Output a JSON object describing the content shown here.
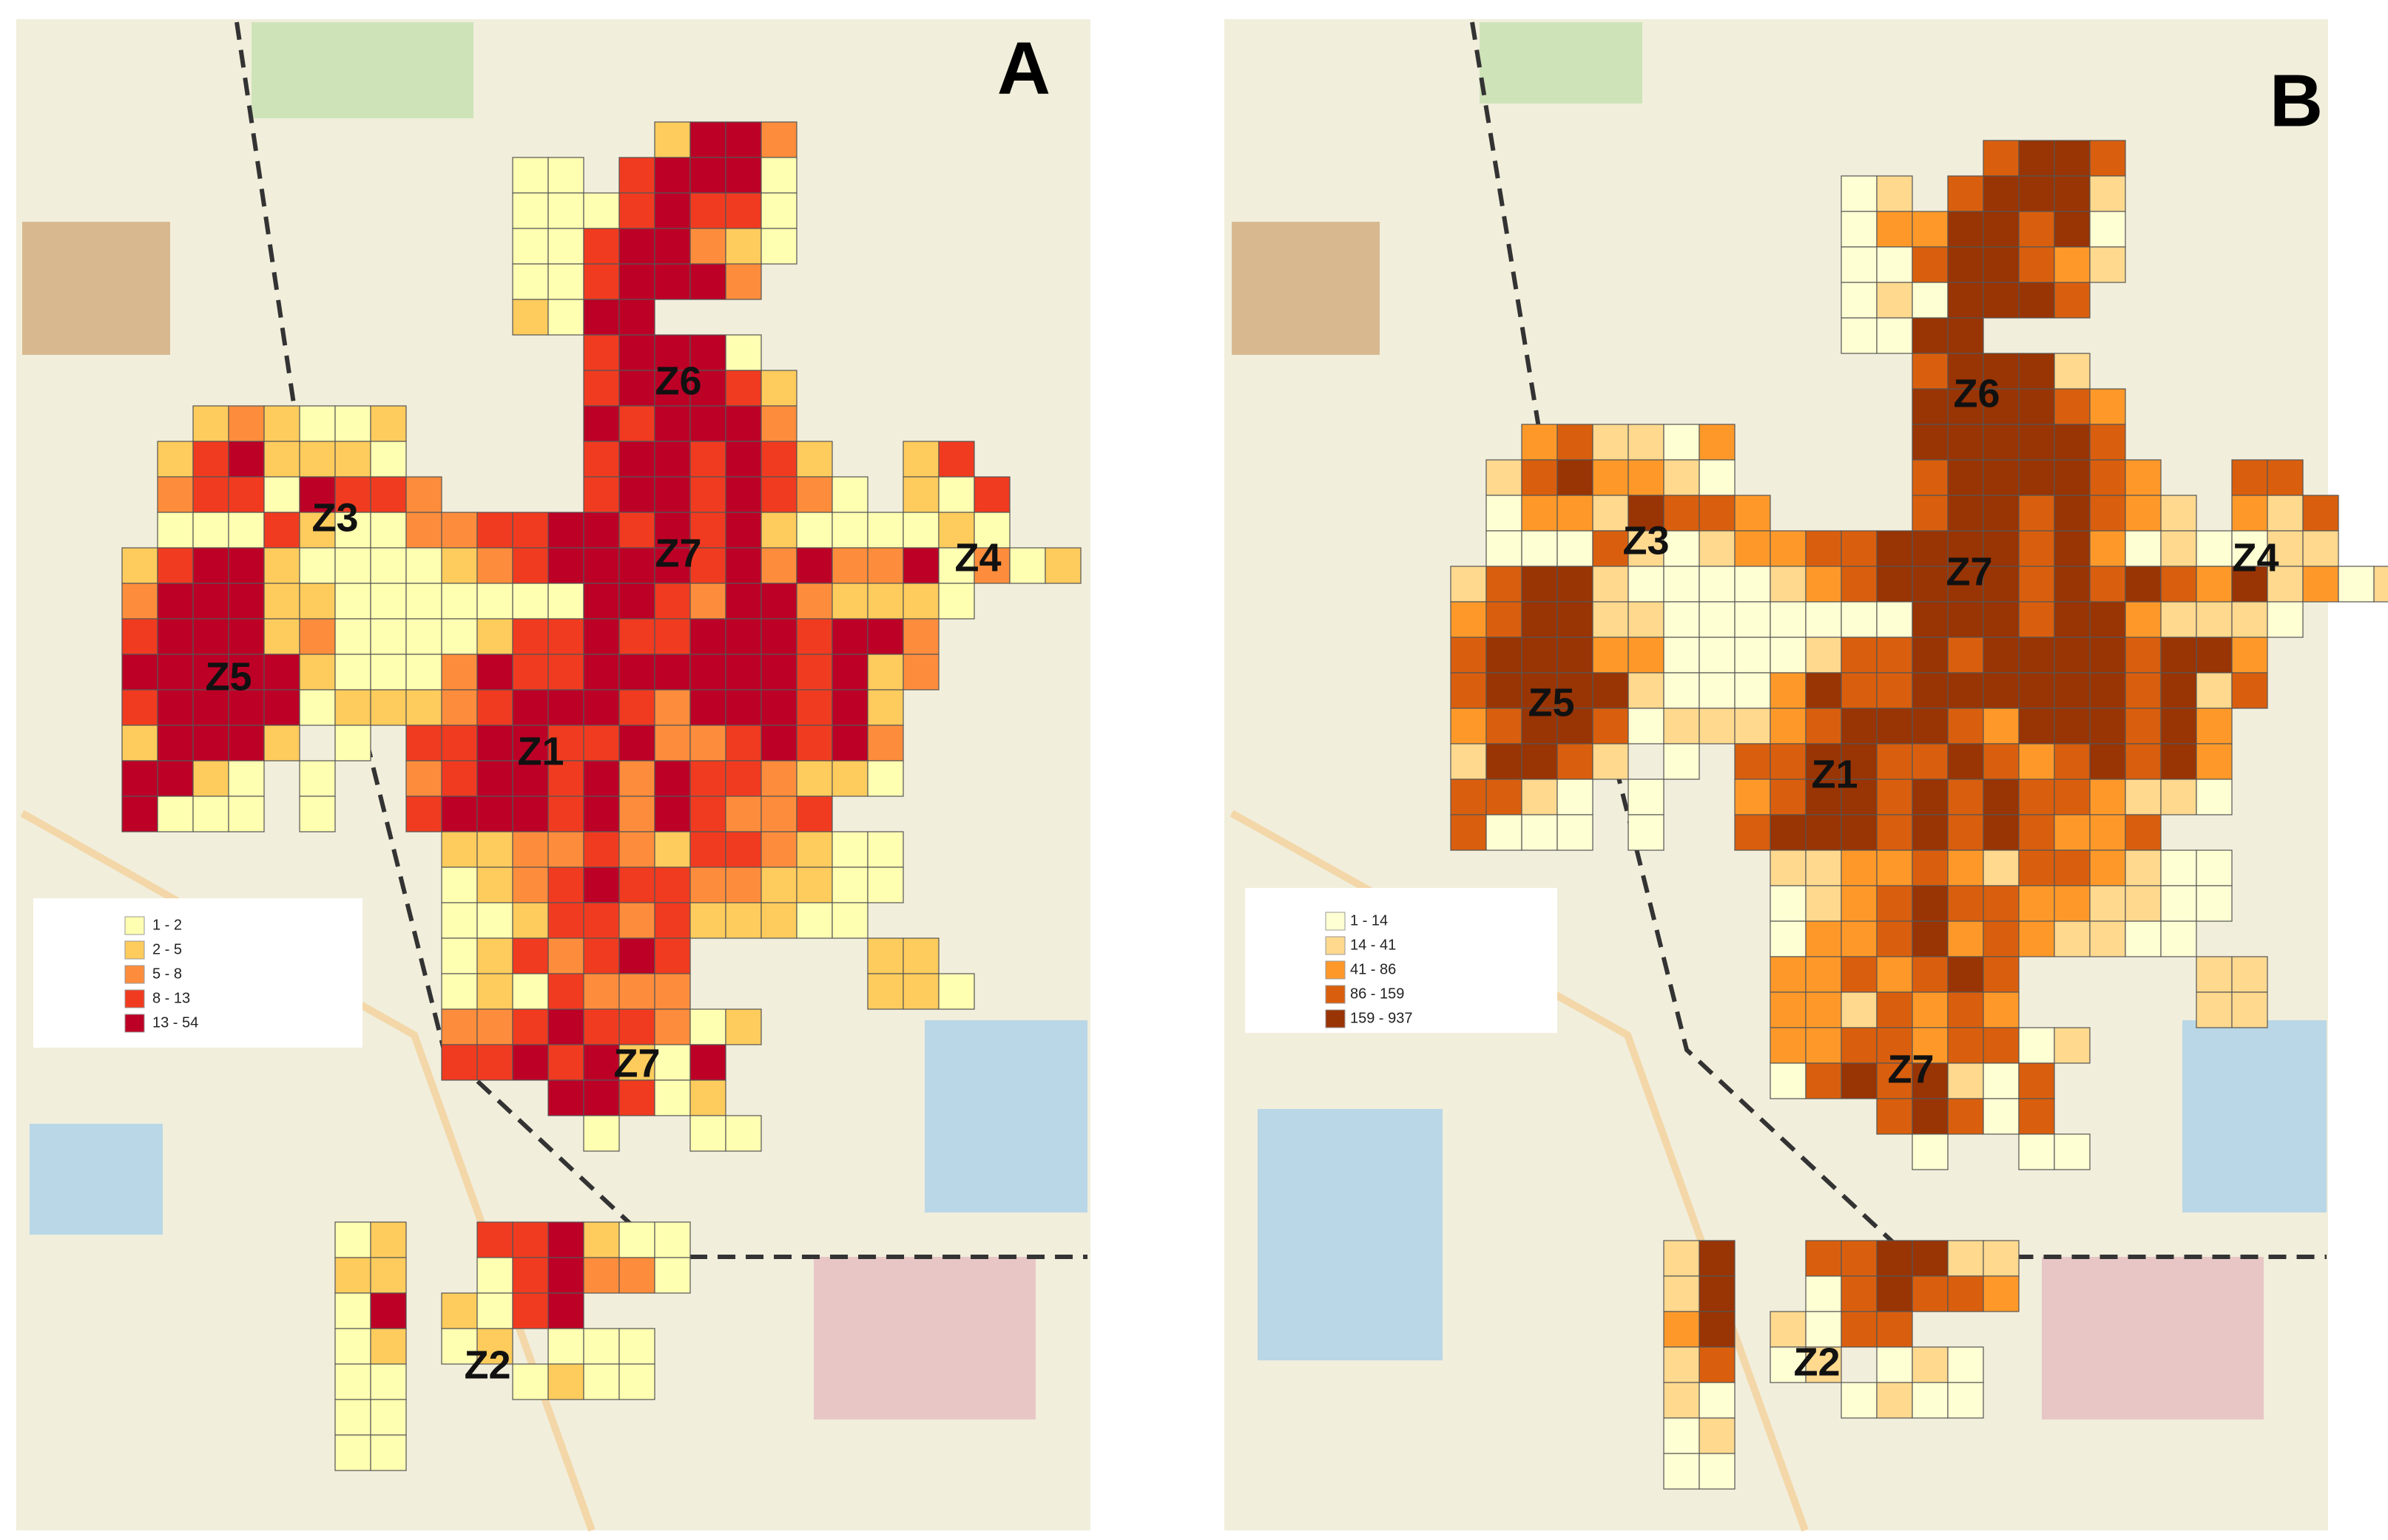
{
  "panels": [
    {
      "label": "A",
      "zones": [
        "Z6",
        "Z3",
        "Z7",
        "Z4",
        "Z5",
        "Z1",
        "Z7",
        "Z2"
      ],
      "legend": [
        {
          "label": "1 - 2",
          "color": "#ffffb2"
        },
        {
          "label": "2 - 5",
          "color": "#fecc5c"
        },
        {
          "label": "5 - 8",
          "color": "#fd8d3c"
        },
        {
          "label": "8 - 13",
          "color": "#f03b20"
        },
        {
          "label": "13 - 54",
          "color": "#bd0026"
        }
      ],
      "grid": [
        "...............2553",
        "...........11.45551",
        "...........11145441",
        "...........11455321",
        "...........1145553",
        "...........2155",
        ".............45551",
        ".............455542",
        "..232112.....545553",
        ".2452221.....4554542..24",
        ".34415443....45545431.214",
        ".111421133445545452111121",
        "245521111234555545353351312",
        "355522111111155435532221",
        "45552311112445445554553",
        "55555211135445555554523",
        "4555512223455543555452",
        "25552.1.44554453345453",
        "5521.1..34554535443221",
        "5111.1..455545354334",
        ".........2233432443211",
        ".........1234544332211",
        ".........112443422211",
        ".........1243454.....22",
        ".........1214333.....221",
        ".........334544312",
        ".........44545215",
        "............55412",
        ".............1..11",
        "",
        "",
        "......12..445211",
        "......22..145331",
        "......15.2145",
        "......12.12.111",
        "......11...1211",
        "......11",
        "......11"
      ]
    },
    {
      "label": "B",
      "zones": [
        "Z6",
        "Z3",
        "Z7",
        "Z4",
        "Z5",
        "Z1",
        "Z7",
        "Z2"
      ],
      "legend": [
        {
          "label": "1 - 14",
          "color": "#ffffd4"
        },
        {
          "label": "14 - 41",
          "color": "#fed98e"
        },
        {
          "label": "41 - 86",
          "color": "#fe9929"
        },
        {
          "label": "86 - 159",
          "color": "#d95f0e"
        },
        {
          "label": "159 - 937",
          "color": "#993404"
        }
      ],
      "grid": [
        "...............4554",
        "...........12.45552",
        "...........13355451",
        "...........11455432",
        "...........1215554",
        "...........1155",
        ".............45552",
        ".............555543",
        "..342213.....555554",
        ".2453321.....4555543..44",
        ".13325443....45545432.324",
        ".111421233445555453121122",
        "245521111234555545454352312",
        "345522111111155545532221",
        "45553311112445455554553",
        "45555211135445555554524",
        "3455412223455543555453",
        "25542.1.44554454345453",
        "4421.1..34554545443221",
        "4111.1..455545454334",
        ".........2233432443211",
        ".........1234544332211",
        ".........133453432211",
        ".........3343454.....22",
        ".........3324343.....22",
        ".........334434412",
        ".........14545214",
        "............45414",
        ".............1..11",
        "",
        "",
        "......25..445522",
        "......25..145443",
        "......35.2144",
        "......24.12.121",
        "......21...1211",
        "......12",
        "......11"
      ]
    }
  ]
}
